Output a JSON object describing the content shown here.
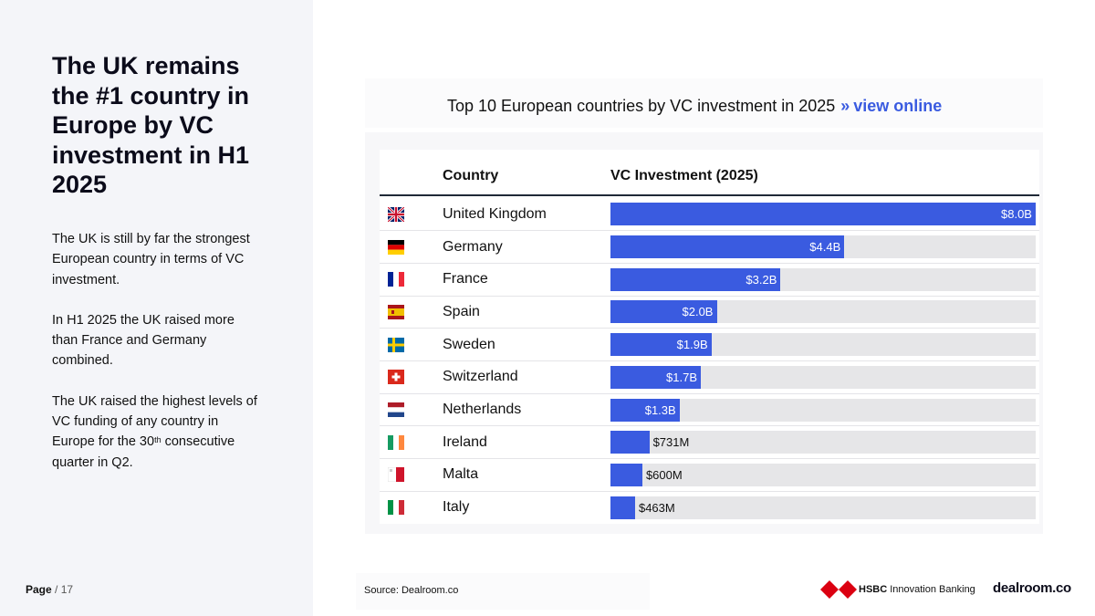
{
  "headline": "The UK remains the #1 country in Europe by VC investment in H1 2025",
  "paragraphs": {
    "p1": "The UK is still by far the strongest European country in terms of VC investment.",
    "p2": "In H1 2025 the UK raised more than France and Germany combined.",
    "p3_before": "The UK raised the highest levels of VC funding of any country in Europe for the 30",
    "p3_sup": "th",
    "p3_after": " consecutive quarter in Q2."
  },
  "page": {
    "label": "Page",
    "separator": "/",
    "number": "17"
  },
  "source": "Source:  Dealroom.co",
  "logos": {
    "hsbc_bold": "HSBC",
    "hsbc_rest": " Innovation Banking",
    "dealroom": "dealroom.co"
  },
  "chart_data": {
    "type": "bar",
    "orientation": "horizontal",
    "title": "Top 10 European countries by VC investment in 2025",
    "title_arrows": "»",
    "title_link": "view online",
    "column_headers": {
      "country": "Country",
      "value": "VC Investment (2025)"
    },
    "unit": "USD billions",
    "xlim": [
      0,
      8.0
    ],
    "categories": [
      "United Kingdom",
      "Germany",
      "France",
      "Spain",
      "Sweden",
      "Switzerland",
      "Netherlands",
      "Ireland",
      "Malta",
      "Italy"
    ],
    "values": [
      8.0,
      4.4,
      3.2,
      2.0,
      1.9,
      1.7,
      1.3,
      0.731,
      0.6,
      0.463
    ],
    "labels": [
      "$8.0B",
      "$4.4B",
      "$3.2B",
      "$2.0B",
      "$1.9B",
      "$1.7B",
      "$1.3B",
      "$731M",
      "$600M",
      "$463M"
    ],
    "flags": [
      "uk-flag",
      "germany-flag",
      "france-flag",
      "spain-flag",
      "sweden-flag",
      "switzerland-flag",
      "netherlands-flag",
      "ireland-flag",
      "malta-flag",
      "italy-flag"
    ],
    "bar_color": "#3a5be0",
    "track_color": "#e6e6e8"
  }
}
